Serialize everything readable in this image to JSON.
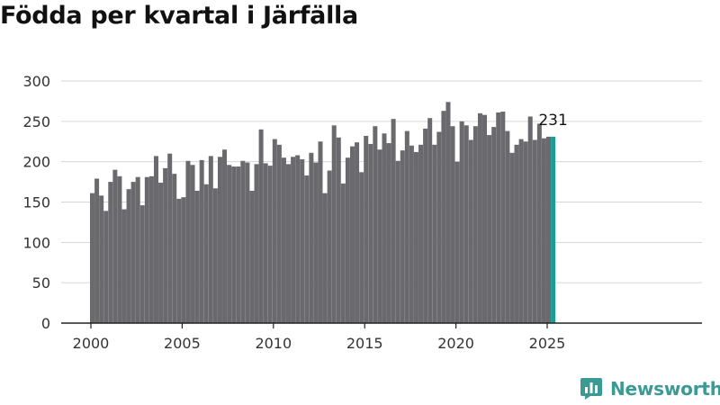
{
  "title": "Födda per kvartal i Järfälla",
  "brand": {
    "name": "Newsworthy",
    "icon": "newsworthy-logo-icon",
    "color": "#3a9a94"
  },
  "chart_data": {
    "type": "bar",
    "title": "Födda per kvartal i Järfälla",
    "xlabel": "",
    "ylabel": "",
    "ylim": [
      0,
      300
    ],
    "yticks": [
      0,
      50,
      100,
      150,
      200,
      250,
      300
    ],
    "xticks": [
      "2000",
      "2005",
      "2010",
      "2015",
      "2020",
      "2025"
    ],
    "grid": true,
    "bar_color": "#6a6a6e",
    "highlight_color": "#1a9e93",
    "last_value_label": "231",
    "categories": [
      "2000 Q1",
      "2000 Q2",
      "2000 Q3",
      "2000 Q4",
      "2001 Q1",
      "2001 Q2",
      "2001 Q3",
      "2001 Q4",
      "2002 Q1",
      "2002 Q2",
      "2002 Q3",
      "2002 Q4",
      "2003 Q1",
      "2003 Q2",
      "2003 Q3",
      "2003 Q4",
      "2004 Q1",
      "2004 Q2",
      "2004 Q3",
      "2004 Q4",
      "2005 Q1",
      "2005 Q2",
      "2005 Q3",
      "2005 Q4",
      "2006 Q1",
      "2006 Q2",
      "2006 Q3",
      "2006 Q4",
      "2007 Q1",
      "2007 Q2",
      "2007 Q3",
      "2007 Q4",
      "2008 Q1",
      "2008 Q2",
      "2008 Q3",
      "2008 Q4",
      "2009 Q1",
      "2009 Q2",
      "2009 Q3",
      "2009 Q4",
      "2010 Q1",
      "2010 Q2",
      "2010 Q3",
      "2010 Q4",
      "2011 Q1",
      "2011 Q2",
      "2011 Q3",
      "2011 Q4",
      "2012 Q1",
      "2012 Q2",
      "2012 Q3",
      "2012 Q4",
      "2013 Q1",
      "2013 Q2",
      "2013 Q3",
      "2013 Q4",
      "2014 Q1",
      "2014 Q2",
      "2014 Q3",
      "2014 Q4",
      "2015 Q1",
      "2015 Q2",
      "2015 Q3",
      "2015 Q4",
      "2016 Q1",
      "2016 Q2",
      "2016 Q3",
      "2016 Q4",
      "2017 Q1",
      "2017 Q2",
      "2017 Q3",
      "2017 Q4",
      "2018 Q1",
      "2018 Q2",
      "2018 Q3",
      "2018 Q4",
      "2019 Q1",
      "2019 Q2",
      "2019 Q3",
      "2019 Q4",
      "2020 Q1",
      "2020 Q2",
      "2020 Q3",
      "2020 Q4",
      "2021 Q1",
      "2021 Q2",
      "2021 Q3",
      "2021 Q4",
      "2022 Q1",
      "2022 Q2",
      "2022 Q3",
      "2022 Q4",
      "2023 Q1",
      "2023 Q2",
      "2023 Q3",
      "2023 Q4",
      "2024 Q1",
      "2024 Q2",
      "2024 Q3",
      "2024 Q4",
      "2025 Q1",
      "2025 Q2"
    ],
    "values": [
      161,
      179,
      158,
      139,
      175,
      190,
      182,
      141,
      166,
      175,
      181,
      146,
      181,
      182,
      207,
      174,
      192,
      210,
      185,
      154,
      156,
      201,
      196,
      164,
      202,
      172,
      207,
      167,
      206,
      215,
      196,
      194,
      194,
      201,
      199,
      164,
      197,
      240,
      198,
      195,
      228,
      221,
      205,
      197,
      206,
      208,
      203,
      183,
      211,
      199,
      225,
      161,
      189,
      245,
      230,
      173,
      205,
      219,
      224,
      187,
      232,
      222,
      244,
      215,
      235,
      223,
      253,
      201,
      214,
      238,
      220,
      212,
      221,
      241,
      254,
      221,
      237,
      263,
      274,
      244,
      200,
      250,
      245,
      227,
      244,
      260,
      258,
      233,
      243,
      261,
      262,
      238,
      211,
      221,
      228,
      225,
      256,
      227,
      247,
      229,
      231,
      231
    ]
  }
}
